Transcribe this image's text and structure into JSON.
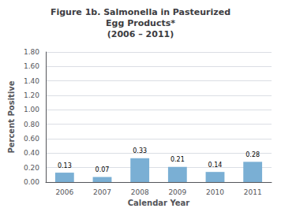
{
  "chart_data": {
    "type": "bar",
    "title": "Figure 1b. Salmonella in Pasteurized\nEgg Products*\n(2006 – 2011)",
    "categories": [
      "2006",
      "2007",
      "2008",
      "2009",
      "2010",
      "2011"
    ],
    "values": [
      0.13,
      0.07,
      0.33,
      0.21,
      0.14,
      0.28
    ],
    "color": "#7aafd4",
    "xlabel": "Calendar Year",
    "ylabel": "Percent Positive",
    "ylim": [
      0,
      1.8
    ],
    "yticks": [
      {
        "value": 0,
        "label": "0.00"
      },
      {
        "value": 0.2,
        "label": "0.20"
      },
      {
        "value": 0.4,
        "label": "0.40"
      },
      {
        "value": 0.6,
        "label": "0.60"
      },
      {
        "value": 0.8,
        "label": "0.80"
      },
      {
        "value": 1,
        "label": "1.00"
      },
      {
        "value": 1.2,
        "label": "1.20"
      },
      {
        "value": 1.4,
        "label": "1.40"
      },
      {
        "value": 1.6,
        "label": "1.60"
      },
      {
        "value": 1.8,
        "label": "1.80"
      }
    ],
    "grid": true,
    "data_labels": true
  }
}
